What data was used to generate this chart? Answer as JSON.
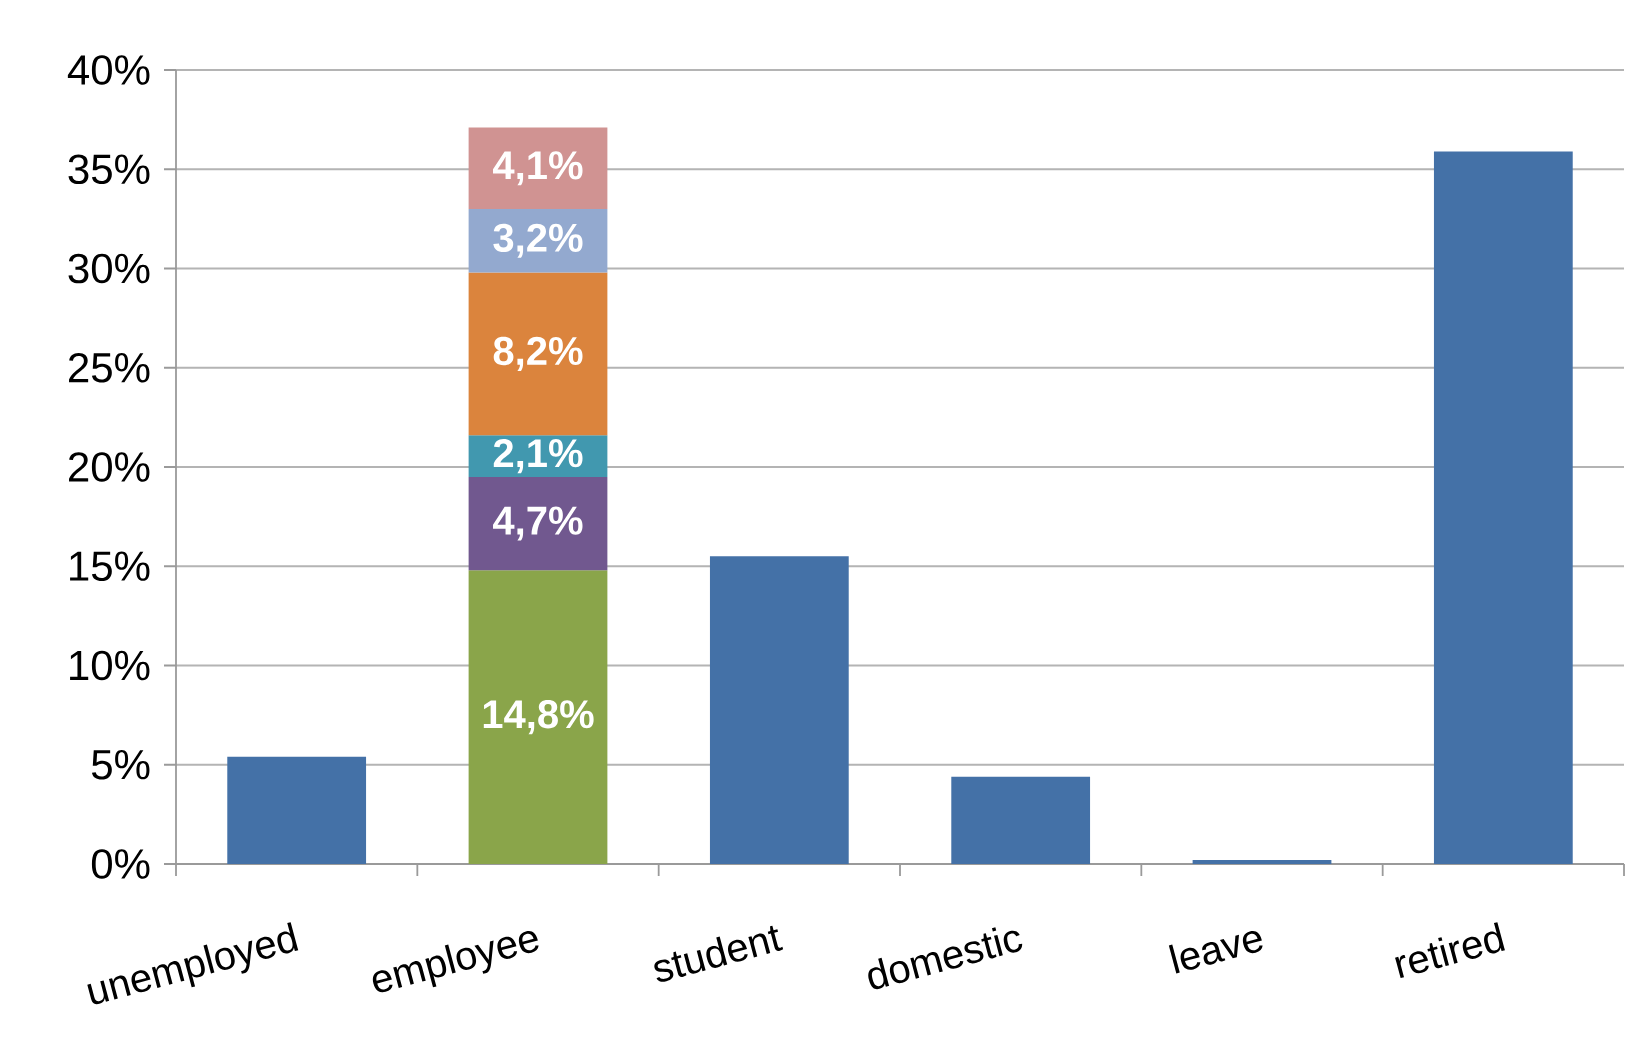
{
  "chart_data": {
    "type": "bar",
    "stacked": true,
    "categories": [
      "unemployed",
      "employee",
      "student",
      "domestic",
      "leave",
      "retired"
    ],
    "series": [
      {
        "colors": [
          "#4471a7",
          "#8aa54a",
          "#4471a7",
          "#4471a7",
          "#4471a7",
          "#4471a7"
        ],
        "values": [
          5.4,
          14.8,
          15.5,
          4.4,
          0.2,
          35.9
        ],
        "value_labels": [
          null,
          "14,8%",
          null,
          null,
          null,
          null
        ]
      },
      {
        "color": "#71588f",
        "values": [
          null,
          4.7,
          null,
          null,
          null,
          null
        ],
        "value_labels": [
          null,
          "4,7%",
          null,
          null,
          null,
          null
        ]
      },
      {
        "color": "#4198af",
        "values": [
          null,
          2.1,
          null,
          null,
          null,
          null
        ],
        "value_labels": [
          null,
          "2,1%",
          null,
          null,
          null,
          null
        ]
      },
      {
        "color": "#db843d",
        "values": [
          null,
          8.2,
          null,
          null,
          null,
          null
        ],
        "value_labels": [
          null,
          "8,2%",
          null,
          null,
          null,
          null
        ]
      },
      {
        "color": "#93a9cf",
        "values": [
          null,
          3.2,
          null,
          null,
          null,
          null
        ],
        "value_labels": [
          null,
          "3,2%",
          null,
          null,
          null,
          null
        ]
      },
      {
        "color": "#d09392",
        "values": [
          null,
          4.1,
          null,
          null,
          null,
          null
        ],
        "value_labels": [
          null,
          "4,1%",
          null,
          null,
          null,
          null
        ]
      }
    ],
    "ylim": [
      0,
      40
    ],
    "yticks": [
      {
        "value": 0,
        "label": "0%"
      },
      {
        "value": 5,
        "label": "5%"
      },
      {
        "value": 10,
        "label": "10%"
      },
      {
        "value": 15,
        "label": "15%"
      },
      {
        "value": 20,
        "label": "20%"
      },
      {
        "value": 25,
        "label": "25%"
      },
      {
        "value": 30,
        "label": "30%"
      },
      {
        "value": 35,
        "label": "35%"
      },
      {
        "value": 40,
        "label": "40%"
      }
    ],
    "grid": "y"
  }
}
